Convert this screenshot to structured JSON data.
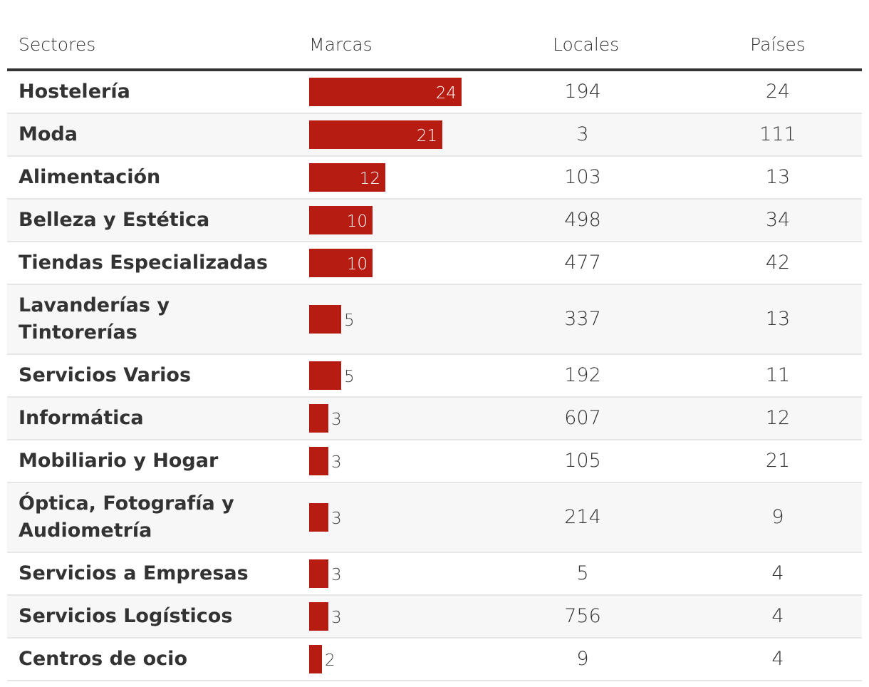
{
  "chart_data": {
    "type": "table",
    "columns": [
      "Sectores",
      "Marcas",
      "Locales",
      "Países"
    ],
    "bar_color": "#b71c12",
    "bar_max": 24,
    "rows": [
      {
        "sector": "Hostelería",
        "marcas": 24,
        "locales": 194,
        "paises": 24
      },
      {
        "sector": "Moda",
        "marcas": 21,
        "locales": 3,
        "paises": 111
      },
      {
        "sector": "Alimentación",
        "marcas": 12,
        "locales": 103,
        "paises": 13
      },
      {
        "sector": "Belleza y Estética",
        "marcas": 10,
        "locales": 498,
        "paises": 34
      },
      {
        "sector": "Tiendas Especializadas",
        "marcas": 10,
        "locales": 477,
        "paises": 42
      },
      {
        "sector": "Lavanderías y Tintorerías",
        "marcas": 5,
        "locales": 337,
        "paises": 13
      },
      {
        "sector": "Servicios Varios",
        "marcas": 5,
        "locales": 192,
        "paises": 11
      },
      {
        "sector": "Informática",
        "marcas": 3,
        "locales": 607,
        "paises": 12
      },
      {
        "sector": "Mobiliario y Hogar",
        "marcas": 3,
        "locales": 105,
        "paises": 21
      },
      {
        "sector": "Óptica, Fotografía y Audiometría",
        "marcas": 3,
        "locales": 214,
        "paises": 9
      },
      {
        "sector": "Servicios a Empresas",
        "marcas": 3,
        "locales": 5,
        "paises": 4
      },
      {
        "sector": "Servicios Logísticos",
        "marcas": 3,
        "locales": 756,
        "paises": 4
      },
      {
        "sector": "Centros de ocio",
        "marcas": 2,
        "locales": 9,
        "paises": 4
      }
    ]
  }
}
